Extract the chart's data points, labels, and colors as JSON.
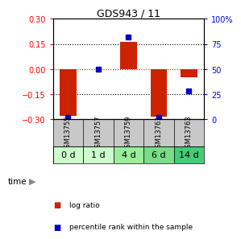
{
  "title": "GDS943 / 11",
  "samples": [
    "GSM13755",
    "GSM13757",
    "GSM13759",
    "GSM13761",
    "GSM13763"
  ],
  "time_labels": [
    "0 d",
    "1 d",
    "4 d",
    "6 d",
    "14 d"
  ],
  "log_ratios": [
    -0.28,
    0.0,
    0.16,
    -0.285,
    -0.05
  ],
  "percentile_ranks": [
    2,
    50,
    82,
    2,
    28
  ],
  "ylim_left": [
    -0.3,
    0.3
  ],
  "ylim_right": [
    0,
    100
  ],
  "yticks_left": [
    -0.3,
    -0.15,
    0,
    0.15,
    0.3
  ],
  "yticks_right": [
    0,
    25,
    50,
    75,
    100
  ],
  "bar_color": "#cc2200",
  "dot_color": "#0000cc",
  "background_color": "#ffffff",
  "plot_bg": "#ffffff",
  "zero_line_color": "#cc2200",
  "sample_bg": "#c8c8c8",
  "time_bg_colors": [
    "#ccffcc",
    "#ccffcc",
    "#99ee99",
    "#77dd88",
    "#44cc77"
  ],
  "legend_log_ratio_color": "#cc2200",
  "legend_percentile_color": "#0000cc",
  "title_fontsize": 9,
  "tick_fontsize": 7,
  "sample_fontsize": 6,
  "time_fontsize": 8
}
